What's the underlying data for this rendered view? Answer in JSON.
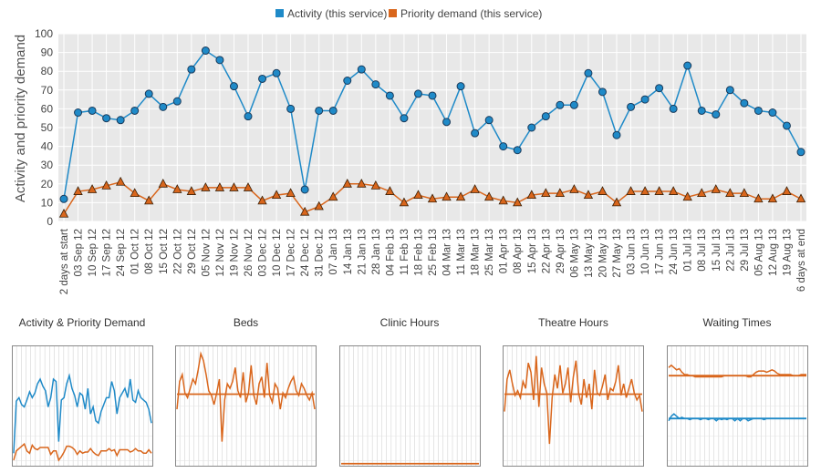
{
  "colors": {
    "activity": "#1f8ac8",
    "priority": "#d9661c",
    "plot_bg": "#e8e8e8",
    "grid": "#ffffff"
  },
  "chart_data": {
    "type": "line",
    "ylabel": "Activity and priority demand",
    "xlabel": "",
    "ylim": [
      0,
      100
    ],
    "yticks": [
      0,
      10,
      20,
      30,
      40,
      50,
      60,
      70,
      80,
      90,
      100
    ],
    "legend_position": "top-center",
    "grid": true,
    "categories": [
      "2 days at start",
      "03 Sep 12",
      "10 Sep 12",
      "17 Sep 12",
      "24 Sep 12",
      "01 Oct 12",
      "08 Oct 12",
      "15 Oct 12",
      "22 Oct 12",
      "29 Oct 12",
      "05 Nov 12",
      "12 Nov 12",
      "19 Nov 12",
      "26 Nov 12",
      "03 Dec 12",
      "10 Dec 12",
      "17 Dec 12",
      "24 Dec 12",
      "31 Dec 12",
      "07 Jan 13",
      "14 Jan 13",
      "21 Jan 13",
      "28 Jan 13",
      "04 Feb 13",
      "11 Feb 13",
      "18 Feb 13",
      "25 Feb 13",
      "04 Mar 13",
      "11 Mar 13",
      "18 Mar 13",
      "25 Mar 13",
      "01 Apr 13",
      "08 Apr 13",
      "15 Apr 13",
      "22 Apr 13",
      "29 Apr 13",
      "06 May 13",
      "13 May 13",
      "20 May 13",
      "27 May 13",
      "03 Jun 13",
      "10 Jun 13",
      "17 Jun 13",
      "24 Jun 13",
      "01 Jul 13",
      "08 Jul 13",
      "15 Jul 13",
      "22 Jul 13",
      "29 Jul 13",
      "05 Aug 13",
      "12 Aug 13",
      "19 Aug 13",
      "6 days at end"
    ],
    "series": [
      {
        "name": "Activity (this service)",
        "marker": "circle",
        "values": [
          12,
          58,
          59,
          55,
          54,
          59,
          68,
          61,
          64,
          81,
          91,
          86,
          72,
          56,
          76,
          79,
          60,
          17,
          59,
          59,
          75,
          81,
          73,
          67,
          55,
          68,
          67,
          53,
          72,
          47,
          54,
          40,
          38,
          50,
          56,
          62,
          62,
          79,
          69,
          46,
          61,
          65,
          71,
          60,
          83,
          59,
          57,
          70,
          63,
          59,
          58,
          51,
          37
        ]
      },
      {
        "name": "Priority demand (this service)",
        "marker": "triangle",
        "values": [
          4,
          16,
          17,
          19,
          21,
          15,
          11,
          20,
          17,
          16,
          18,
          18,
          18,
          18,
          11,
          14,
          15,
          5,
          8,
          13,
          20,
          20,
          19,
          16,
          10,
          14,
          12,
          13,
          13,
          17,
          13,
          11,
          10,
          14,
          15,
          15,
          17,
          14,
          16,
          10,
          16,
          16,
          16,
          16,
          13,
          15,
          17,
          15,
          15,
          12,
          12,
          16,
          12
        ]
      }
    ]
  },
  "thumbnails": [
    {
      "title": "Activity & Priority Demand",
      "lines": [
        {
          "color": "#1f8ac8",
          "values": [
            10,
            55,
            58,
            52,
            50,
            56,
            63,
            58,
            62,
            70,
            74,
            68,
            64,
            50,
            58,
            74,
            72,
            20,
            56,
            58,
            70,
            77,
            66,
            60,
            50,
            62,
            60,
            48,
            66,
            44,
            50,
            38,
            36,
            46,
            52,
            58,
            58,
            72,
            64,
            44,
            58,
            62,
            66,
            58,
            74,
            56,
            54,
            64,
            58,
            56,
            54,
            48,
            36
          ]
        },
        {
          "color": "#d9661c",
          "values": [
            4,
            12,
            14,
            16,
            18,
            12,
            10,
            17,
            14,
            13,
            15,
            15,
            15,
            15,
            9,
            12,
            12,
            4,
            7,
            11,
            16,
            16,
            15,
            13,
            9,
            12,
            10,
            11,
            11,
            14,
            11,
            9,
            8,
            12,
            12,
            12,
            14,
            12,
            13,
            8,
            13,
            13,
            13,
            13,
            11,
            12,
            14,
            12,
            12,
            10,
            10,
            13,
            10
          ]
        }
      ]
    },
    {
      "title": "Beds",
      "lines": [
        {
          "color": "#d9661c",
          "flat": 61
        },
        {
          "color": "#d9661c",
          "values": [
            48,
            72,
            78,
            62,
            58,
            66,
            74,
            70,
            82,
            96,
            90,
            78,
            64,
            60,
            52,
            62,
            74,
            20,
            56,
            70,
            66,
            72,
            84,
            64,
            58,
            80,
            54,
            62,
            86,
            60,
            52,
            70,
            76,
            58,
            88,
            60,
            54,
            70,
            66,
            48,
            62,
            58,
            66,
            72,
            76,
            64,
            60,
            70,
            66,
            60,
            56,
            62,
            48
          ]
        }
      ]
    },
    {
      "title": "Clinic Hours",
      "lines": [
        {
          "color": "#d9661c",
          "flat": 1
        }
      ]
    },
    {
      "title": "Theatre Hours",
      "lines": [
        {
          "color": "#d9661c",
          "flat": 61
        },
        {
          "color": "#d9661c",
          "values": [
            46,
            74,
            82,
            70,
            60,
            64,
            58,
            72,
            66,
            88,
            80,
            56,
            94,
            50,
            84,
            70,
            62,
            18,
            58,
            78,
            66,
            86,
            62,
            70,
            84,
            54,
            76,
            90,
            62,
            52,
            74,
            58,
            70,
            48,
            82,
            62,
            60,
            68,
            78,
            56,
            66,
            64,
            72,
            86,
            60,
            70,
            58,
            66,
            74,
            62,
            56,
            60,
            46
          ]
        }
      ]
    },
    {
      "title": "Waiting Times",
      "lines": [
        {
          "color": "#d9661c",
          "flat": 77
        },
        {
          "color": "#d9661c",
          "values": [
            84,
            86,
            84,
            82,
            83,
            80,
            78,
            78,
            77,
            77,
            76,
            76,
            76,
            76,
            76,
            76,
            76,
            76,
            76,
            76,
            76,
            77,
            77,
            77,
            77,
            77,
            77,
            77,
            77,
            77,
            76,
            76,
            78,
            80,
            81,
            81,
            81,
            80,
            81,
            82,
            81,
            79,
            78,
            78,
            78,
            78,
            78,
            77,
            77,
            77,
            78,
            78,
            78
          ]
        },
        {
          "color": "#1f8ac8",
          "flat": 40
        },
        {
          "color": "#1f8ac8",
          "values": [
            38,
            42,
            44,
            42,
            40,
            41,
            40,
            40,
            39,
            40,
            40,
            40,
            39,
            40,
            40,
            39,
            40,
            40,
            38,
            40,
            39,
            40,
            39,
            40,
            40,
            38,
            40,
            38,
            40,
            40,
            38,
            39,
            40,
            40,
            40,
            40,
            39,
            40,
            40,
            40,
            40,
            40,
            40,
            40,
            40,
            40,
            40,
            40,
            40,
            40,
            40,
            40,
            40
          ]
        }
      ]
    }
  ]
}
